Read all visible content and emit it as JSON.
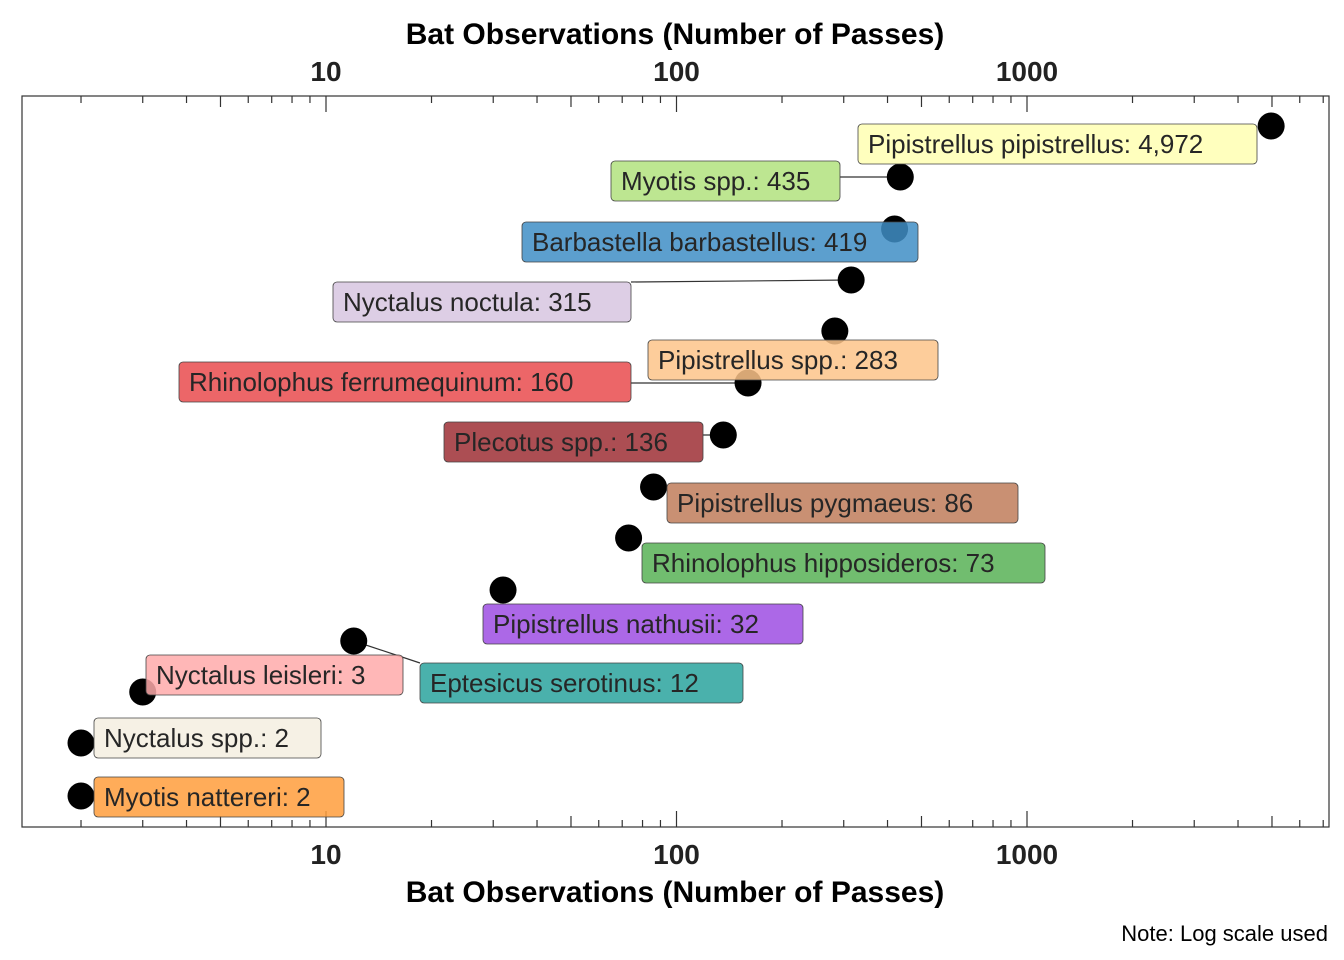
{
  "chart_data": {
    "type": "scatter",
    "title": "",
    "xlabel_top": "Bat Observations (Number of Passes)",
    "xlabel_bottom": "Bat Observations (Number of Passes)",
    "ylabel": "",
    "x_scale": "log10",
    "xlim": [
      1.3,
      7000
    ],
    "x_ticks": [
      10,
      100,
      1000
    ],
    "x_tick_labels": [
      "10",
      "100",
      "1000"
    ],
    "grid": false,
    "legend": "none",
    "note": "Note: Log scale used",
    "points": [
      {
        "label": "Pipistrellus pipistrellus: 4,972",
        "species": "Pipistrellus pipistrellus",
        "value": 4972,
        "color": "#ffffb3"
      },
      {
        "label": "Myotis spp.: 435",
        "species": "Myotis spp.",
        "value": 435,
        "color": "#b2e27e"
      },
      {
        "label": "Barbastella barbastellus: 419",
        "species": "Barbastella barbastellus",
        "value": 419,
        "color": "#3f8ec5"
      },
      {
        "label": "Nyctalus noctula: 315",
        "species": "Nyctalus noctula",
        "value": 315,
        "color": "#d7c6e1"
      },
      {
        "label": "Pipistrellus spp.: 283",
        "species": "Pipistrellus spp.",
        "value": 283,
        "color": "#fdc48a"
      },
      {
        "label": "Rhinolophus ferrumequinum: 160",
        "species": "Rhinolophus ferrumequinum",
        "value": 160,
        "color": "#e94b4e"
      },
      {
        "label": "Plecotus spp.: 136",
        "species": "Plecotus spp.",
        "value": 136,
        "color": "#9e2f35"
      },
      {
        "label": "Pipistrellus pygmaeus: 86",
        "species": "Pipistrellus pygmaeus",
        "value": 86,
        "color": "#c07c5b"
      },
      {
        "label": "Rhinolophus hipposideros: 73",
        "species": "Rhinolophus hipposideros",
        "value": 73,
        "color": "#58b256"
      },
      {
        "label": "Pipistrellus nathusii: 32",
        "species": "Pipistrellus nathusii",
        "value": 32,
        "color": "#9e4ee3"
      },
      {
        "label": "Eptesicus serotinus: 12",
        "species": "Eptesicus serotinus",
        "value": 12,
        "color": "#2aa39d"
      },
      {
        "label": "Nyctalus leisleri: 3",
        "species": "Nyctalus leisleri",
        "value": 3,
        "color": "#ffaaaa"
      },
      {
        "label": "Nyctalus spp.: 2",
        "species": "Nyctalus spp.",
        "value": 2,
        "color": "#f4efe0"
      },
      {
        "label": "Myotis nattereri: 2",
        "species": "Myotis nattereri",
        "value": 2,
        "color": "#ff9d3c"
      }
    ]
  }
}
